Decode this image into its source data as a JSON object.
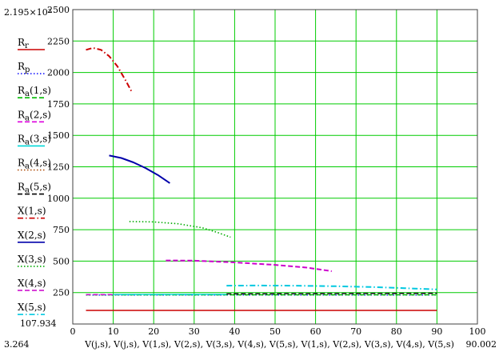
{
  "chart_data": {
    "type": "line",
    "xlim": [
      0,
      100
    ],
    "ylim": [
      0,
      2500
    ],
    "x_ticks": [
      0,
      10,
      20,
      30,
      40,
      50,
      60,
      70,
      80,
      90,
      100
    ],
    "y_ticks": [
      250,
      500,
      750,
      1000,
      1250,
      1500,
      1750,
      2000,
      2250,
      2500
    ],
    "grid": true,
    "legend_position": "left",
    "y_top_marker": "2.195×10³",
    "y_bottom_marker": "107.934",
    "x_left_marker": "3.264",
    "x_right_marker": "90.002",
    "xlabel": "V(j,s), V(j,s), V(1,s), V(2,s), V(3,s), V(4,s), V(5,s), V(1,s), V(2,s), V(3,s), V(4,s), V(5,s)",
    "legend": [
      {
        "label": "R_r",
        "color": "#cc0000",
        "dash": "solid"
      },
      {
        "label": "R_p",
        "color": "#1a1aff",
        "dash": "dotted"
      },
      {
        "label": "R_a(1,s)",
        "color": "#00bb00",
        "dash": "dashed"
      },
      {
        "label": "R_a(2,s)",
        "color": "#dd00dd",
        "dash": "dashed"
      },
      {
        "label": "R_a(3,s)",
        "color": "#00d8d8",
        "dash": "solid"
      },
      {
        "label": "R_a(4,s)",
        "color": "#aa4400",
        "dash": "dotted"
      },
      {
        "label": "R_a(5,s)",
        "color": "#000000",
        "dash": "dashed"
      },
      {
        "label": "X(1,s)",
        "color": "#cc0000",
        "dash": "dashdot"
      },
      {
        "label": "X(2,s)",
        "color": "#0000aa",
        "dash": "solid"
      },
      {
        "label": "X(3,s)",
        "color": "#00aa00",
        "dash": "dotted"
      },
      {
        "label": "X(4,s)",
        "color": "#cc00cc",
        "dash": "dashed"
      },
      {
        "label": "X(5,s)",
        "color": "#00c8e0",
        "dash": "dashdot"
      }
    ],
    "series": [
      {
        "label": "R_r",
        "color": "#cc0000",
        "dash": "solid",
        "width": 1.4,
        "x": [
          3.264,
          90.002
        ],
        "y": [
          108,
          108
        ]
      },
      {
        "label": "R_p",
        "color": "#1a1aff",
        "dash": "dotted",
        "width": 1.4,
        "x": [
          3.264,
          90.002
        ],
        "y": [
          230,
          230
        ]
      },
      {
        "label": "R_a(1,s)",
        "color": "#00bb00",
        "dash": "dashed",
        "width": 1.4,
        "x": [
          3.264,
          90.002
        ],
        "y": [
          232,
          232
        ]
      },
      {
        "label": "R_a(2,s)",
        "color": "#dd00dd",
        "dash": "dashed",
        "width": 1.4,
        "x": [
          3.264,
          12
        ],
        "y": [
          234,
          234
        ]
      },
      {
        "label": "R_a(3,s)",
        "color": "#00d8d8",
        "dash": "solid",
        "width": 1.4,
        "x": [
          10,
          38
        ],
        "y": [
          235,
          236
        ]
      },
      {
        "label": "R_a(5,s)",
        "color": "#000000",
        "dash": "dashed",
        "width": 1.4,
        "x": [
          38,
          90.002
        ],
        "y": [
          240,
          244
        ]
      },
      {
        "label": "X(1,s)",
        "color": "#cc0000",
        "dash": "dashdot",
        "width": 2,
        "x": [
          3.264,
          5,
          7,
          9,
          11,
          13,
          14.5
        ],
        "y": [
          2180,
          2195,
          2180,
          2130,
          2050,
          1940,
          1850
        ]
      },
      {
        "label": "X(2,s)",
        "color": "#0000aa",
        "dash": "solid",
        "width": 2,
        "x": [
          9,
          12,
          15,
          18,
          21,
          24
        ],
        "y": [
          1340,
          1320,
          1285,
          1240,
          1185,
          1120
        ]
      },
      {
        "label": "X(3,s)",
        "color": "#00aa00",
        "dash": "dotted",
        "width": 1.6,
        "x": [
          14,
          20,
          26,
          32,
          36,
          39
        ],
        "y": [
          815,
          812,
          797,
          765,
          725,
          690
        ]
      },
      {
        "label": "X(4,s)",
        "color": "#cc00cc",
        "dash": "dashed",
        "width": 2,
        "x": [
          23,
          30,
          40,
          50,
          58,
          64
        ],
        "y": [
          505,
          504,
          490,
          470,
          448,
          420
        ]
      },
      {
        "label": "X(5,s)",
        "color": "#00c8e0",
        "dash": "dashdot",
        "width": 2,
        "x": [
          38,
          45,
          55,
          65,
          75,
          82,
          90.002
        ],
        "y": [
          305,
          306,
          305,
          300,
          293,
          285,
          275
        ]
      }
    ]
  }
}
